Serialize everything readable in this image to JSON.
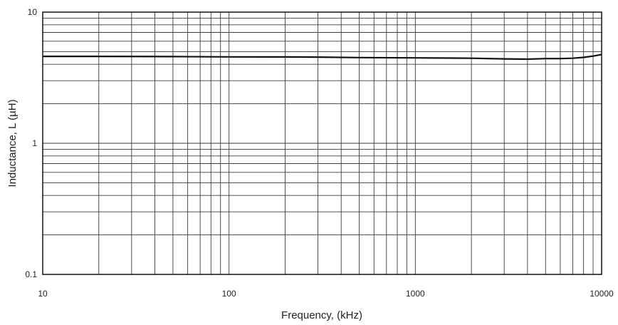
{
  "chart_data": {
    "type": "line",
    "xlabel": "Frequency, (kHz)",
    "ylabel": "Inductance, L (µH)",
    "x_scale": "log",
    "y_scale": "log",
    "xlim": [
      10,
      10000
    ],
    "ylim": [
      0.1,
      10
    ],
    "grid": true,
    "x_tick_labels": [
      "10",
      "100",
      "1000",
      "10000"
    ],
    "y_tick_labels": [
      "0.1",
      "1",
      "10"
    ],
    "series": [
      {
        "x": [
          10,
          20,
          50,
          100,
          200,
          300,
          500,
          1000,
          2000,
          3000,
          4000,
          5000,
          6000,
          7000,
          8000,
          9000,
          10000
        ],
        "y": [
          4.6,
          4.6,
          4.58,
          4.56,
          4.55,
          4.54,
          4.5,
          4.48,
          4.45,
          4.4,
          4.38,
          4.42,
          4.42,
          4.45,
          4.52,
          4.62,
          4.75
        ],
        "color": "#111111"
      }
    ]
  }
}
